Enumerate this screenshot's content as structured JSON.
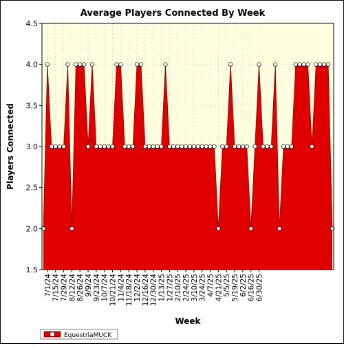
{
  "chart_data": {
    "type": "area",
    "title": "Average Players Connected By Week",
    "xlabel": "Week",
    "ylabel": "Players Connected",
    "ylim": [
      1.5,
      4.5
    ],
    "yticks": [
      "1.5",
      "2.0",
      "2.5",
      "3.0",
      "3.5",
      "4.0",
      "4.5"
    ],
    "grid": true,
    "legend_position": "bottom-left",
    "x_tick_labels": [
      "7/1/24",
      "7/15/24",
      "7/29/24",
      "8/12/24",
      "8/26/24",
      "9/9/24",
      "9/23/24",
      "10/7/24",
      "10/21/24",
      "11/4/24",
      "11/18/24",
      "12/2/24",
      "12/16/24",
      "12/30/24",
      "1/13/25",
      "1/27/25",
      "2/10/25",
      "2/24/25",
      "3/10/25",
      "3/24/25",
      "4/7/25",
      "4/21/25",
      "5/5/25",
      "5/19/25",
      "6/2/25",
      "6/16/25",
      "6/30/25"
    ],
    "series": [
      {
        "name": "EquestriaMUCK",
        "color": "#e00000",
        "values": [
          2,
          4,
          3,
          3,
          3,
          3,
          4,
          2,
          4,
          4,
          4,
          3,
          4,
          3,
          3,
          3,
          3,
          3,
          4,
          4,
          3,
          3,
          3,
          4,
          4,
          3,
          3,
          3,
          3,
          3,
          4,
          3,
          3,
          3,
          3,
          3,
          3,
          3,
          3,
          3,
          3,
          3,
          3,
          2,
          3,
          3,
          4,
          3,
          3,
          3,
          3,
          2,
          3,
          4,
          3,
          3,
          3,
          4,
          2,
          3,
          3,
          3,
          4,
          4,
          4,
          4,
          3,
          4,
          4,
          4,
          4,
          2
        ]
      }
    ]
  }
}
